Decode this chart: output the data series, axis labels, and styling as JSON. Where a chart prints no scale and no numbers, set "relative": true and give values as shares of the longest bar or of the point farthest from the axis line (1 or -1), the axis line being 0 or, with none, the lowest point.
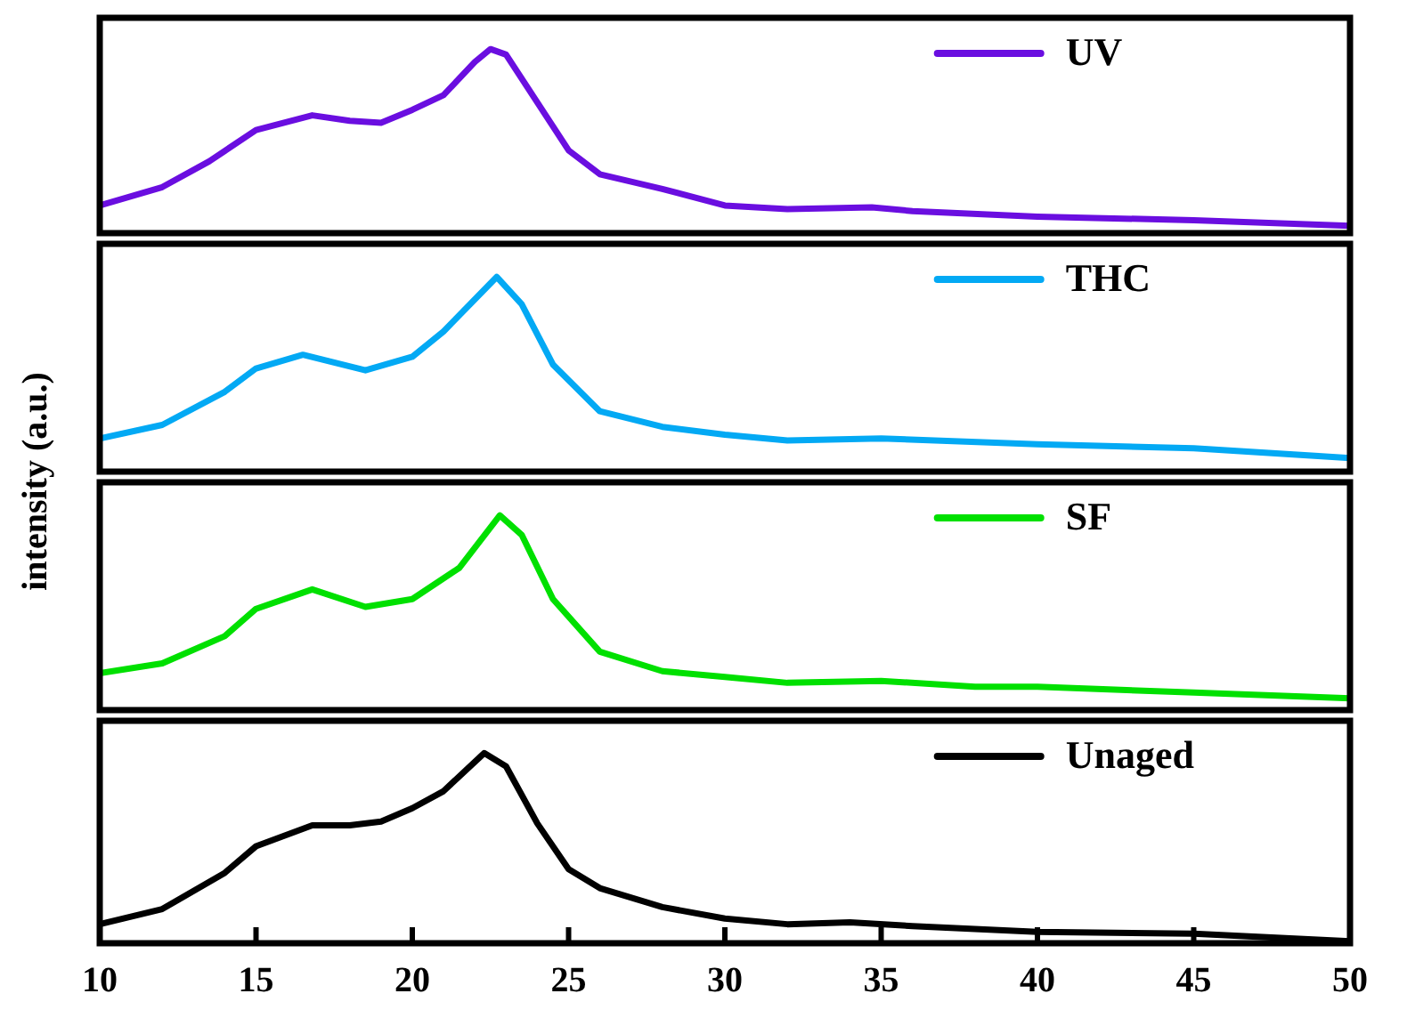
{
  "chart_data": [
    {
      "type": "line",
      "ylabel": "intensity (a.u.)",
      "relative": true,
      "xlim": [
        10,
        50
      ],
      "xticks": [
        10,
        15,
        20,
        25,
        30,
        35,
        40,
        45,
        50
      ],
      "tick_labels": false,
      "legend": "top right",
      "marker": "none",
      "line_style": "solid",
      "series": [
        {
          "name": "UV",
          "color": "#6a0ee0",
          "x": [
            10,
            12,
            13.5,
            15,
            16.8,
            18,
            19,
            20,
            21,
            22,
            22.5,
            23,
            24,
            25,
            26,
            28,
            30,
            32,
            34.7,
            36,
            40,
            45,
            50
          ],
          "values": [
            0.15,
            0.25,
            0.39,
            0.56,
            0.64,
            0.61,
            0.6,
            0.67,
            0.75,
            0.93,
            1,
            0.97,
            0.71,
            0.45,
            0.32,
            0.24,
            0.15,
            0.13,
            0.14,
            0.12,
            0.09,
            0.07,
            0.04
          ]
        }
      ]
    },
    {
      "type": "line",
      "relative": true,
      "xlim": [
        10,
        50
      ],
      "xticks": [
        10,
        15,
        20,
        25,
        30,
        35,
        40,
        45,
        50
      ],
      "tick_labels": false,
      "legend": "top right",
      "marker": "none",
      "line_style": "solid",
      "series": [
        {
          "name": "THC",
          "color": "#03a9f4",
          "x": [
            10,
            12,
            14,
            15,
            16.5,
            18.5,
            20,
            21,
            22.7,
            23.5,
            24.5,
            26,
            28,
            30,
            32,
            35,
            40,
            45,
            50
          ],
          "values": [
            0.17,
            0.24,
            0.41,
            0.53,
            0.6,
            0.52,
            0.59,
            0.72,
            1,
            0.86,
            0.55,
            0.31,
            0.23,
            0.19,
            0.16,
            0.17,
            0.14,
            0.12,
            0.07
          ]
        }
      ]
    },
    {
      "type": "line",
      "relative": true,
      "xlim": [
        10,
        50
      ],
      "xticks": [
        10,
        15,
        20,
        25,
        30,
        35,
        40,
        45,
        50
      ],
      "tick_labels": false,
      "legend": "top right",
      "marker": "none",
      "line_style": "solid",
      "series": [
        {
          "name": "SF",
          "color": "#00e000",
          "x": [
            10,
            12,
            14,
            15,
            16.8,
            18.5,
            20,
            21.5,
            22.8,
            23.5,
            24.5,
            26,
            28,
            30,
            32,
            35,
            38,
            40,
            45,
            50
          ],
          "values": [
            0.19,
            0.24,
            0.38,
            0.52,
            0.62,
            0.53,
            0.57,
            0.73,
            1,
            0.9,
            0.57,
            0.3,
            0.2,
            0.17,
            0.14,
            0.15,
            0.12,
            0.12,
            0.09,
            0.06
          ]
        }
      ]
    },
    {
      "type": "line",
      "relative": true,
      "xlim": [
        10,
        50
      ],
      "xticks": [
        10,
        15,
        20,
        25,
        30,
        35,
        40,
        45,
        50
      ],
      "tick_labels": "x",
      "legend": "top right",
      "marker": "none",
      "line_style": "solid",
      "series": [
        {
          "name": "Unaged",
          "color": "#000000",
          "x": [
            10,
            12,
            14,
            15,
            16.8,
            18,
            19,
            20,
            21,
            22.3,
            23,
            24,
            25,
            26,
            28,
            30,
            32,
            34,
            36,
            40,
            45,
            50
          ],
          "values": [
            0.1,
            0.18,
            0.37,
            0.51,
            0.62,
            0.62,
            0.64,
            0.71,
            0.8,
            1,
            0.93,
            0.63,
            0.39,
            0.29,
            0.19,
            0.13,
            0.1,
            0.11,
            0.09,
            0.06,
            0.05,
            0.01
          ]
        }
      ]
    }
  ]
}
